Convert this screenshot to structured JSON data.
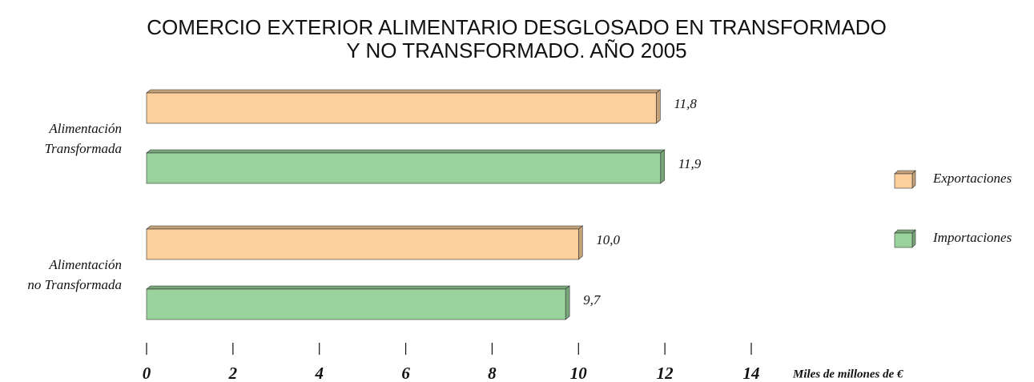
{
  "chart_data": {
    "type": "bar",
    "orientation": "horizontal",
    "title": [
      "COMERCIO EXTERIOR ALIMENTARIO DESGLOSADO EN TRANSFORMADO",
      "Y NO TRANSFORMADO. AÑO 2005"
    ],
    "categories": [
      [
        "Alimentación",
        "Transformada"
      ],
      [
        "Alimentación",
        "no Transformada"
      ]
    ],
    "series": [
      {
        "name": "Exportaciones",
        "color": "#fdd09b",
        "values": [
          11.8,
          10.0
        ],
        "value_labels": [
          "11,8",
          "10,0"
        ]
      },
      {
        "name": "Importaciones",
        "color": "#9ad39c",
        "values": [
          11.9,
          9.7
        ],
        "value_labels": [
          "11,9",
          "9,7"
        ]
      }
    ],
    "xlim": [
      0,
      14
    ],
    "xticks": [
      0,
      2,
      4,
      6,
      8,
      10,
      12,
      14
    ],
    "xlabel": "Miles de millones de €",
    "legend": "right"
  }
}
